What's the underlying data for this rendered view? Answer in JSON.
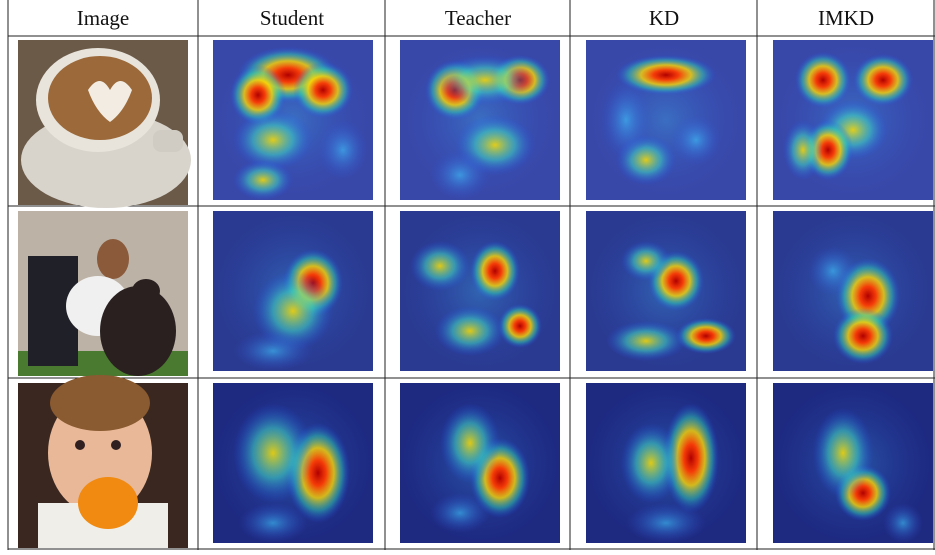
{
  "table": {
    "headers": [
      "Image",
      "Student",
      "Teacher",
      "KD",
      "IMKD"
    ]
  }
}
